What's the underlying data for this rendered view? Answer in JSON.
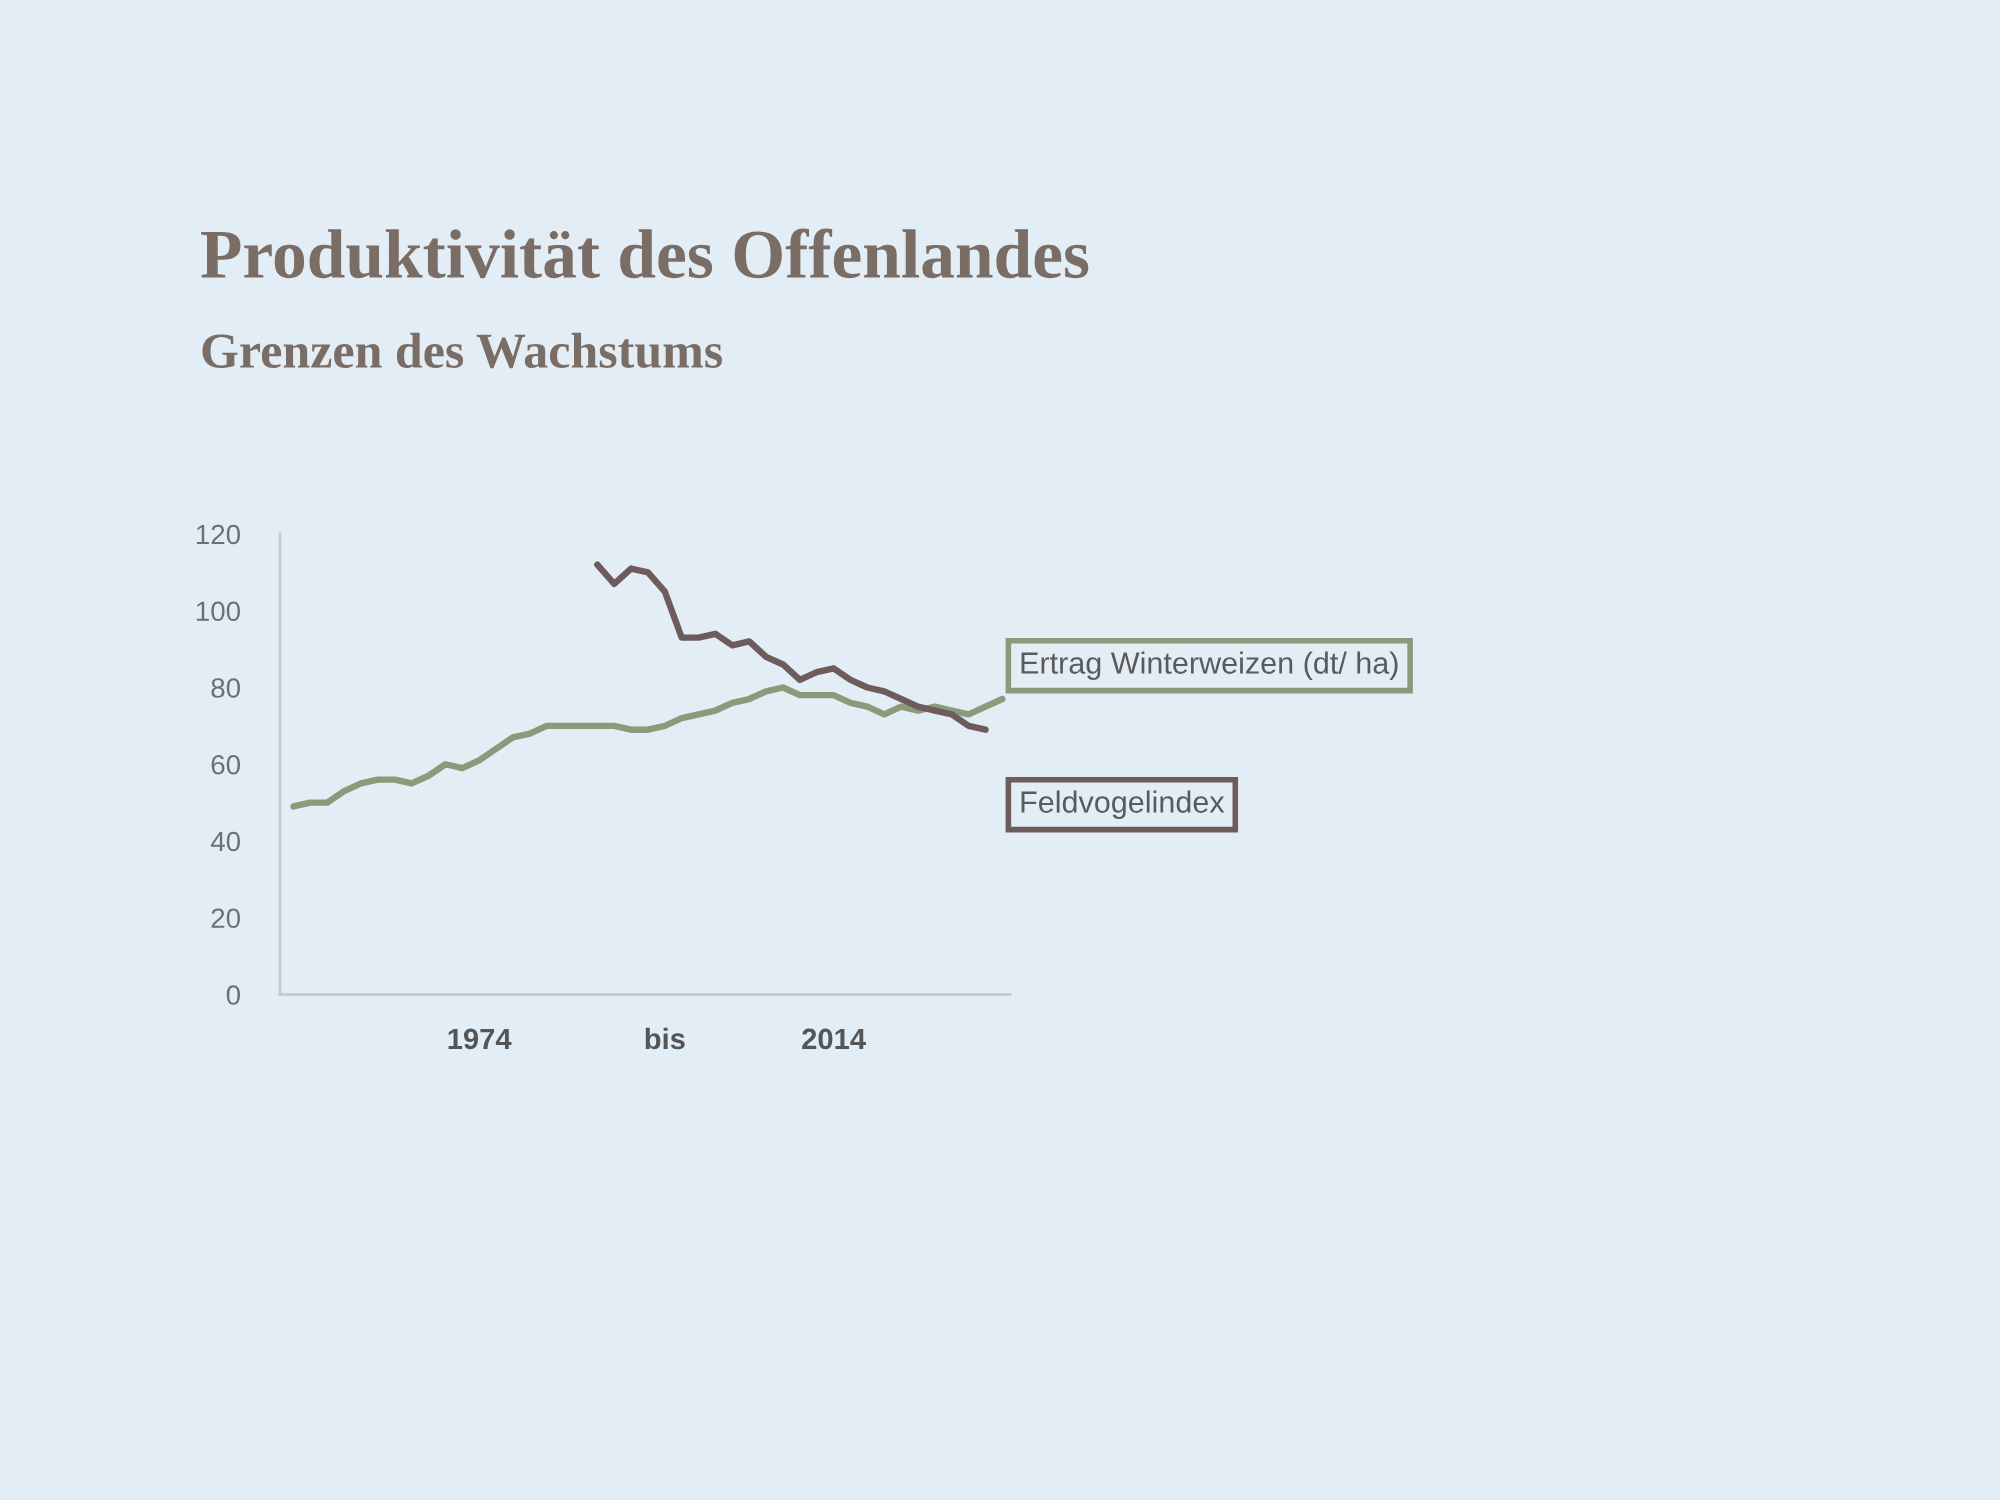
{
  "chart_data": {
    "type": "line",
    "title": "Produktivität des Offenlandes",
    "subtitle": "Grenzen des Wachstums",
    "categories": [
      null,
      null,
      null,
      null,
      null,
      null,
      null,
      null,
      null,
      null,
      null,
      "1974",
      null,
      null,
      null,
      null,
      null,
      null,
      null,
      null,
      null,
      null,
      "bis",
      null,
      null,
      null,
      null,
      null,
      null,
      null,
      null,
      null,
      "2014",
      null,
      null,
      null,
      null,
      null,
      null,
      null,
      null,
      null,
      null
    ],
    "series": [
      {
        "name": "Ertrag Winterweizen (dt/ ha)",
        "color": "#8c9a7c",
        "values": [
          49,
          50,
          50,
          53,
          55,
          56,
          56,
          55,
          57,
          60,
          59,
          61,
          64,
          67,
          68,
          70,
          70,
          70,
          70,
          70,
          69,
          69,
          70,
          72,
          73,
          74,
          76,
          77,
          79,
          80,
          78,
          78,
          78,
          76,
          75,
          73,
          75,
          74,
          75,
          74,
          73,
          75,
          77
        ]
      },
      {
        "name": "Feldvogelindex",
        "color": "#6e5c5c",
        "values": [
          null,
          null,
          null,
          null,
          null,
          null,
          null,
          null,
          null,
          null,
          null,
          null,
          null,
          null,
          null,
          null,
          null,
          null,
          112,
          107,
          111,
          110,
          105,
          93,
          93,
          94,
          91,
          92,
          88,
          86,
          82,
          84,
          85,
          82,
          80,
          79,
          77,
          75,
          74,
          73,
          70,
          69,
          null
        ]
      }
    ],
    "ylim": [
      0,
      120
    ],
    "yticks": [
      0,
      20,
      40,
      60,
      80,
      100,
      120
    ]
  }
}
